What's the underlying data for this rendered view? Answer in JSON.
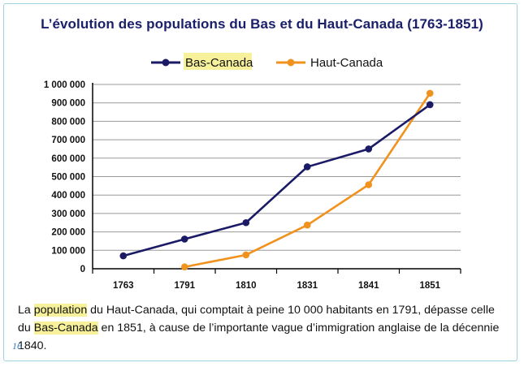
{
  "chart_data": {
    "type": "line",
    "title": "L’évolution des populations du Bas et du Haut-Canada (1763-1851)",
    "categories": [
      "1763",
      "1791",
      "1810",
      "1831",
      "1841",
      "1851"
    ],
    "yticks": [
      "0",
      "100 000",
      "200 000",
      "300 000",
      "400 000",
      "500 000",
      "600 000",
      "700 000",
      "800 000",
      "900 000",
      "1 000 000"
    ],
    "ylim": [
      0,
      1000000
    ],
    "grid": true,
    "legend_position": "top-center",
    "series": [
      {
        "name": "Bas-Canada",
        "color": "#1a1a66",
        "highlight": true,
        "values": [
          70000,
          161000,
          250000,
          553000,
          650000,
          890000
        ]
      },
      {
        "name": "Haut-Canada",
        "color": "#f0921e",
        "highlight": false,
        "values": [
          null,
          10000,
          75000,
          237000,
          456000,
          952000
        ]
      }
    ]
  },
  "caption": {
    "part1": "La ",
    "highlight1": "population",
    "part2": " du Haut-Canada, qui comptait à peine 10 000 habitants en 1791, dépasse celle du ",
    "highlight2": "Bas-Canada",
    "part3": " en 1851, à cause de l’importante vague d’immigration anglaise de la décennie 1840."
  },
  "page_number": "16",
  "colors": {
    "title": "#1a1f6b",
    "grid": "#999999",
    "highlight": "#f6f19a",
    "frame": "#9fd3e3"
  }
}
